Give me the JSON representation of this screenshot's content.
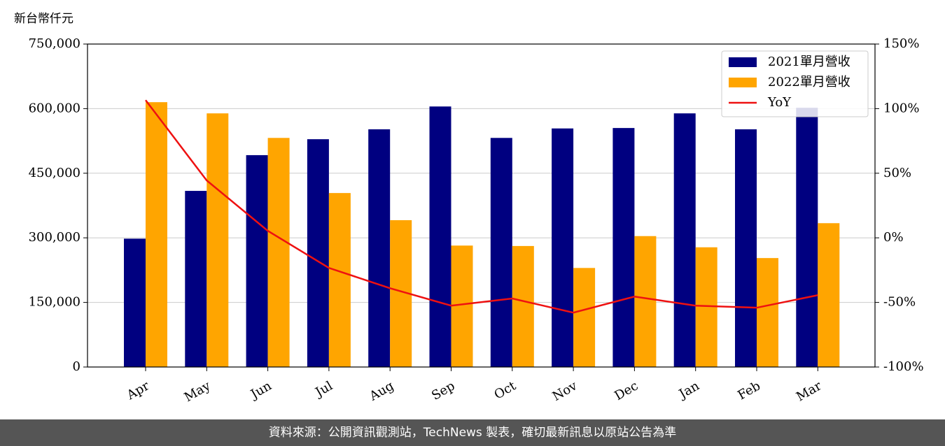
{
  "chart_data": {
    "type": "bar_line",
    "y_label": "新台幣仟元",
    "categories": [
      "Apr",
      "May",
      "Jun",
      "Jul",
      "Aug",
      "Sep",
      "Oct",
      "Nov",
      "Dec",
      "Jan",
      "Feb",
      "Mar"
    ],
    "series": [
      {
        "name": "2021單月營收",
        "color": "#000080",
        "type": "bar",
        "values": [
          298000,
          409000,
          492000,
          529000,
          552000,
          605000,
          532000,
          554000,
          555000,
          589000,
          552000,
          602000
        ]
      },
      {
        "name": "2022單月營收",
        "color": "#ffa500",
        "type": "bar",
        "values": [
          615000,
          589000,
          532000,
          404000,
          341000,
          282000,
          281000,
          230000,
          304000,
          278000,
          253000,
          334000
        ]
      },
      {
        "name": "YoY",
        "color": "#ee1111",
        "type": "line",
        "axis": "y2",
        "values": [
          106.6,
          44.4,
          5.4,
          -23.3,
          -39,
          -52.5,
          -47,
          -57.9,
          -45.5,
          -52.5,
          -54.1,
          -44.4
        ]
      }
    ],
    "ylim": [
      0,
      750000
    ],
    "yticks": [
      0,
      {
        "value": 150000,
        "label": "150,000"
      },
      {
        "value": 300000,
        "label": "300,000"
      },
      {
        "value": 450000,
        "label": "450,000"
      },
      {
        "value": 600000,
        "label": "600,000"
      },
      {
        "value": 750000,
        "label": "750,000"
      }
    ],
    "y2lim": [
      -100,
      150
    ],
    "y2ticks": [
      {
        "value": -100,
        "label": "-100%"
      },
      {
        "value": -50,
        "label": "-50%"
      },
      {
        "value": 0,
        "label": "0%"
      },
      {
        "value": 50,
        "label": "50%"
      },
      {
        "value": 100,
        "label": "100%"
      },
      {
        "value": 150,
        "label": "150%"
      }
    ],
    "grid": true,
    "legend": "upper right"
  },
  "footer": "資料來源：公開資訊觀測站，TechNews 製表，確切最新訊息以原站公告為準"
}
